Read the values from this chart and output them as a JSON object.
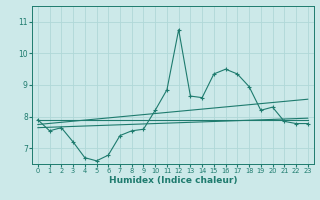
{
  "xlabel": "Humidex (Indice chaleur)",
  "xlim": [
    -0.5,
    23.5
  ],
  "ylim": [
    6.5,
    11.5
  ],
  "yticks": [
    7,
    8,
    9,
    10,
    11
  ],
  "xticks": [
    0,
    1,
    2,
    3,
    4,
    5,
    6,
    7,
    8,
    9,
    10,
    11,
    12,
    13,
    14,
    15,
    16,
    17,
    18,
    19,
    20,
    21,
    22,
    23
  ],
  "bg_color": "#cce9e9",
  "line_color": "#1e7b6e",
  "grid_color": "#b0d8d8",
  "main_line": {
    "x": [
      0,
      1,
      2,
      3,
      4,
      5,
      6,
      7,
      8,
      9,
      10,
      11,
      12,
      13,
      14,
      15,
      16,
      17,
      18,
      19,
      20,
      21,
      22,
      23
    ],
    "y": [
      7.9,
      7.55,
      7.65,
      7.2,
      6.7,
      6.6,
      6.78,
      7.4,
      7.55,
      7.6,
      8.2,
      8.85,
      10.75,
      8.65,
      8.6,
      9.35,
      9.5,
      9.35,
      8.95,
      8.2,
      8.3,
      7.85,
      7.78,
      7.78
    ]
  },
  "trend_lines": [
    {
      "x": [
        0,
        23
      ],
      "y": [
        7.88,
        7.88
      ]
    },
    {
      "x": [
        0,
        23
      ],
      "y": [
        7.75,
        8.55
      ]
    },
    {
      "x": [
        0,
        23
      ],
      "y": [
        7.65,
        7.95
      ]
    }
  ]
}
